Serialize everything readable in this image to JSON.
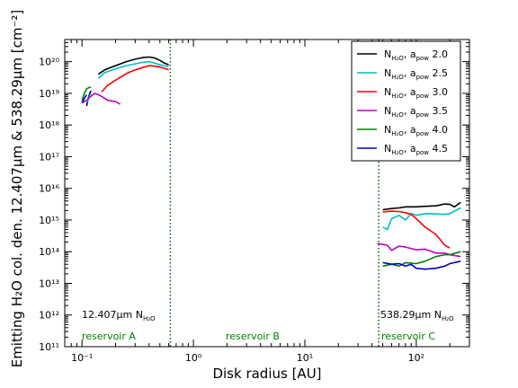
{
  "chart_data": {
    "type": "line",
    "xlabel": "Disk radius [AU]",
    "ylabel": "Emitting H₂O col. den. 12.407μm & 538.29μm [cm⁻²]",
    "xscale": "log",
    "yscale": "log",
    "xlim": [
      0.07,
      300
    ],
    "ylim": [
      100000000000.0,
      5e+20
    ],
    "x_ticks": [
      {
        "value": 0.1,
        "label": "10⁻¹"
      },
      {
        "value": 1,
        "label": "10⁰"
      },
      {
        "value": 10,
        "label": "10¹"
      },
      {
        "value": 100,
        "label": "10²"
      }
    ],
    "y_ticks": [
      {
        "value": 100000000000.0,
        "label": "10¹¹"
      },
      {
        "value": 1000000000000.0,
        "label": "10¹²"
      },
      {
        "value": 10000000000000.0,
        "label": "10¹³"
      },
      {
        "value": 100000000000000.0,
        "label": "10¹⁴"
      },
      {
        "value": 1000000000000000.0,
        "label": "10¹⁵"
      },
      {
        "value": 1e+16,
        "label": "10¹⁶"
      },
      {
        "value": 1e+17,
        "label": "10¹⁷"
      },
      {
        "value": 1e+18,
        "label": "10¹⁸"
      },
      {
        "value": 1e+19,
        "label": "10¹⁹"
      },
      {
        "value": 1e+20,
        "label": "10²⁰"
      }
    ],
    "vlines": [
      0.62,
      46
    ],
    "legend_position": "top-right",
    "series": [
      {
        "name": "N_H2O, a_pow 2.0",
        "color": "#000000",
        "segments": [
          [
            [
              0.11,
              4e+18
            ],
            [
              0.115,
              8e+18
            ],
            [
              0.12,
              1.2e+19
            ]
          ],
          [
            [
              0.14,
              4e+19
            ],
            [
              0.16,
              5.5e+19
            ],
            [
              0.2,
              7.5e+19
            ],
            [
              0.25,
              1e+20
            ],
            [
              0.3,
              1.2e+20
            ],
            [
              0.35,
              1.35e+20
            ],
            [
              0.4,
              1.4e+20
            ],
            [
              0.45,
              1.3e+20
            ],
            [
              0.5,
              1.1e+20
            ],
            [
              0.55,
              9e+19
            ],
            [
              0.6,
              8e+19
            ]
          ],
          [
            [
              50,
              2100000000000000.0
            ],
            [
              60,
              2300000000000000.0
            ],
            [
              70,
              2400000000000000.0
            ],
            [
              80,
              2600000000000000.0
            ],
            [
              100,
              2600000000000000.0
            ],
            [
              120,
              2700000000000000.0
            ],
            [
              150,
              2800000000000000.0
            ],
            [
              180,
              3200000000000000.0
            ],
            [
              200,
              3100000000000000.0
            ],
            [
              220,
              2600000000000000.0
            ],
            [
              250,
              3600000000000000.0
            ]
          ]
        ]
      },
      {
        "name": "N_H2O, a_pow 2.5",
        "color": "#00BFBF",
        "segments": [
          [
            [
              0.11,
              5e+18
            ],
            [
              0.12,
              1e+19
            ]
          ],
          [
            [
              0.14,
              3e+19
            ],
            [
              0.16,
              4.5e+19
            ],
            [
              0.2,
              6e+19
            ],
            [
              0.25,
              7.5e+19
            ],
            [
              0.3,
              8.5e+19
            ],
            [
              0.35,
              9.5e+19
            ],
            [
              0.4,
              1e+20
            ],
            [
              0.45,
              9e+19
            ],
            [
              0.5,
              8e+19
            ],
            [
              0.55,
              7.5e+19
            ],
            [
              0.6,
              7e+19
            ]
          ],
          [
            [
              50,
              600000000000000.0
            ],
            [
              55,
              500000000000000.0
            ],
            [
              60,
              1100000000000000.0
            ],
            [
              70,
              1400000000000000.0
            ],
            [
              80,
              1000000000000000.0
            ],
            [
              90,
              1600000000000000.0
            ],
            [
              100,
              1400000000000000.0
            ],
            [
              120,
              1600000000000000.0
            ],
            [
              150,
              1550000000000000.0
            ],
            [
              180,
              1500000000000000.0
            ],
            [
              200,
              1600000000000000.0
            ],
            [
              250,
              2400000000000000.0
            ]
          ]
        ]
      },
      {
        "name": "N_H2O, a_pow 3.0",
        "color": "#FF0000",
        "segments": [
          [
            [
              0.15,
              1.1e+19
            ],
            [
              0.17,
              1.8e+19
            ],
            [
              0.2,
              2.6e+19
            ],
            [
              0.25,
              4.2e+19
            ],
            [
              0.3,
              5.5e+19
            ],
            [
              0.35,
              6.5e+19
            ],
            [
              0.4,
              7.5e+19
            ],
            [
              0.45,
              7.2e+19
            ],
            [
              0.5,
              6.8e+19
            ],
            [
              0.55,
              6.2e+19
            ],
            [
              0.6,
              5.5e+19
            ]
          ],
          [
            [
              50,
              1800000000000000.0
            ],
            [
              60,
              1900000000000000.0
            ],
            [
              70,
              1850000000000000.0
            ],
            [
              80,
              1700000000000000.0
            ],
            [
              90,
              1500000000000000.0
            ],
            [
              100,
              1100000000000000.0
            ],
            [
              120,
              600000000000000.0
            ],
            [
              150,
              350000000000000.0
            ],
            [
              180,
              160000000000000.0
            ],
            [
              200,
              130000000000000.0
            ]
          ]
        ]
      },
      {
        "name": "N_H2O, a_pow 3.5",
        "color": "#BF00BF",
        "segments": [
          [
            [
              0.1,
              5e+18
            ],
            [
              0.11,
              6e+18
            ],
            [
              0.12,
              8e+18
            ],
            [
              0.13,
              1e+19
            ],
            [
              0.14,
              9e+18
            ],
            [
              0.15,
              8e+18
            ],
            [
              0.17,
              6e+18
            ],
            [
              0.2,
              5.5e+18
            ],
            [
              0.22,
              4.5e+18
            ]
          ],
          [
            [
              45,
              180000000000000.0
            ],
            [
              55,
              160000000000000.0
            ],
            [
              60,
              110000000000000.0
            ],
            [
              70,
              150000000000000.0
            ],
            [
              80,
              140000000000000.0
            ],
            [
              100,
              115000000000000.0
            ],
            [
              120,
              120000000000000.0
            ],
            [
              150,
              90000000000000.0
            ],
            [
              180,
              90000000000000.0
            ],
            [
              200,
              80000000000000.0
            ],
            [
              250,
              70000000000000.0
            ]
          ]
        ]
      },
      {
        "name": "N_H2O, a_pow 4.0",
        "color": "#008000",
        "segments": [
          [
            [
              0.1,
              6e+18
            ],
            [
              0.105,
              1e+19
            ],
            [
              0.11,
              1.4e+19
            ],
            [
              0.12,
              1.6e+19
            ]
          ],
          [
            [
              50,
              35000000000000.0
            ],
            [
              60,
              40000000000000.0
            ],
            [
              70,
              35000000000000.0
            ],
            [
              80,
              45000000000000.0
            ],
            [
              100,
              42000000000000.0
            ],
            [
              120,
              50000000000000.0
            ],
            [
              150,
              70000000000000.0
            ],
            [
              180,
              80000000000000.0
            ],
            [
              200,
              80000000000000.0
            ],
            [
              250,
              100000000000000.0
            ]
          ]
        ]
      },
      {
        "name": "N_H2O, a_pow 4.5",
        "color": "#0000BF",
        "segments": [
          [
            [
              0.1,
              5e+18
            ],
            [
              0.105,
              7e+18
            ],
            [
              0.11,
              9e+18
            ]
          ],
          [
            [
              50,
              45000000000000.0
            ],
            [
              60,
              40000000000000.0
            ],
            [
              70,
              42000000000000.0
            ],
            [
              80,
              35000000000000.0
            ],
            [
              90,
              40000000000000.0
            ],
            [
              100,
              30000000000000.0
            ],
            [
              120,
              28000000000000.0
            ],
            [
              150,
              30000000000000.0
            ],
            [
              180,
              35000000000000.0
            ],
            [
              200,
              42000000000000.0
            ],
            [
              250,
              50000000000000.0
            ]
          ]
        ]
      }
    ],
    "annotations": {
      "left_label": "12.407μm N",
      "right_label": "538.29μm N",
      "label_sub": "H₂O",
      "reservoirs": [
        "reservoir A",
        "reservoir B",
        "reservoir C"
      ]
    },
    "legend": {
      "n_main": "N",
      "n_sub": "H₂O",
      "a_main": ", a",
      "a_sub": "pow",
      "values": [
        "2.0",
        "2.5",
        "3.0",
        "3.5",
        "4.0",
        "4.5"
      ]
    }
  }
}
